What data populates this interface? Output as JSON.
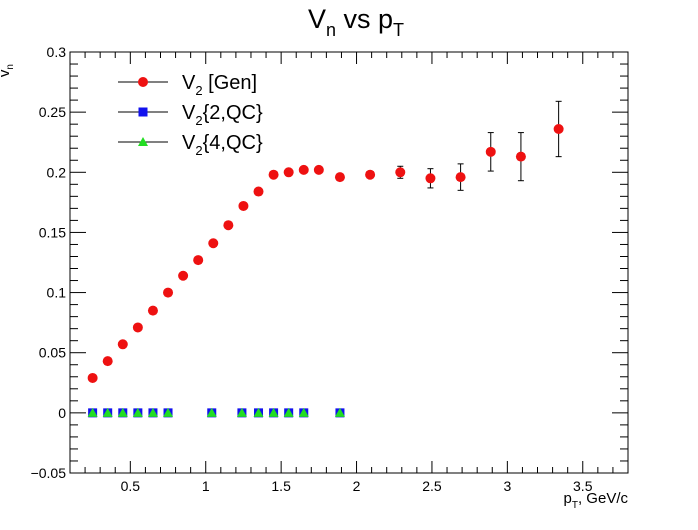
{
  "chart_data": {
    "type": "scatter",
    "title": "V",
    "title_sub": "n",
    "title_mid": " vs p",
    "title_sub2": "T",
    "ylabel_main": "v",
    "ylabel_sub": "n",
    "xlabel_main": "p",
    "xlabel_sub": "T",
    "xlabel_rest": ", GeV/c",
    "xlim": [
      0.1,
      3.8
    ],
    "ylim": [
      -0.05,
      0.3
    ],
    "x_ticks": [
      0.5,
      1,
      1.5,
      2,
      2.5,
      3,
      3.5
    ],
    "x_tick_labels": [
      "0.5",
      "1",
      "1.5",
      "2",
      "2.5",
      "3",
      "3.5"
    ],
    "y_ticks": [
      -0.05,
      0,
      0.05,
      0.1,
      0.15,
      0.2,
      0.25,
      0.3
    ],
    "y_tick_labels": [
      "−0.05",
      "0",
      "0.05",
      "0.1",
      "0.15",
      "0.2",
      "0.25",
      "0.3"
    ],
    "grid": false,
    "legend_position": "top-left",
    "series": [
      {
        "name": "V",
        "name_sub": "2",
        "name_rest": " [Gen]",
        "color": "#ee1111",
        "marker": "circle",
        "x": [
          0.25,
          0.35,
          0.45,
          0.55,
          0.65,
          0.75,
          0.85,
          0.95,
          1.05,
          1.15,
          1.25,
          1.35,
          1.45,
          1.55,
          1.65,
          1.75,
          1.89,
          2.09,
          2.29,
          2.49,
          2.69,
          2.89,
          3.09,
          3.34
        ],
        "y": [
          0.029,
          0.043,
          0.057,
          0.071,
          0.085,
          0.1,
          0.114,
          0.127,
          0.141,
          0.156,
          0.172,
          0.184,
          0.198,
          0.2,
          0.202,
          0.202,
          0.196,
          0.198,
          0.2,
          0.195,
          0.196,
          0.217,
          0.213,
          0.236
        ],
        "yerr": [
          0,
          0,
          0,
          0,
          0,
          0,
          0,
          0,
          0,
          0,
          0,
          0,
          0,
          0,
          0,
          0,
          0,
          0,
          0.005,
          0.008,
          0.011,
          0.016,
          0.02,
          0.023
        ]
      },
      {
        "name": "V",
        "name_sub": "2",
        "name_rest": "{2,QC}",
        "color": "#1111ee",
        "marker": "square",
        "x": [
          0.25,
          0.35,
          0.45,
          0.55,
          0.65,
          0.75,
          1.04,
          1.24,
          1.35,
          1.45,
          1.55,
          1.65,
          1.89
        ],
        "y": [
          0,
          0,
          0,
          0,
          0,
          0,
          0,
          0,
          0,
          0,
          0,
          0,
          0
        ]
      },
      {
        "name": "V",
        "name_sub": "2",
        "name_rest": "{4,QC}",
        "color": "#22dd22",
        "marker": "triangle",
        "x": [
          0.25,
          0.35,
          0.45,
          0.55,
          0.65,
          0.75,
          1.04,
          1.24,
          1.35,
          1.45,
          1.55,
          1.65,
          1.89
        ],
        "y": [
          0,
          0,
          0,
          0,
          0,
          0,
          0,
          0,
          0,
          0,
          0,
          0,
          0
        ]
      }
    ]
  }
}
